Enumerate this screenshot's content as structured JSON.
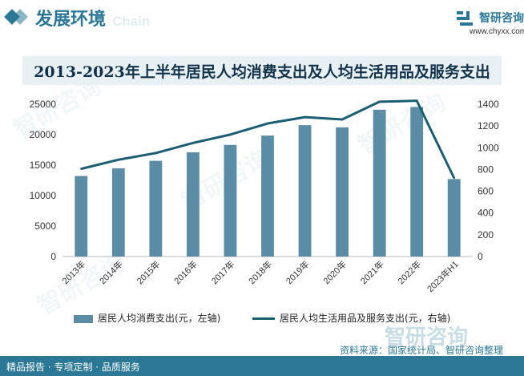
{
  "header": {
    "section_title": "发展环境",
    "ghost_text": "Chain",
    "brand_name": "智研咨询",
    "brand_url": "www.chyxx.com",
    "watermark": "智研咨询",
    "accent_color": "#2a7896"
  },
  "chart_title": "2013-2023年上半年居民人均消费支出及人均生活用品及服务支出",
  "legend": {
    "bar_label": "居民人均消费支出(元，左轴)",
    "line_label": "居民人均生活用品及服务支出(元，右轴)"
  },
  "source": "资料来源：国家统计局、智研咨询整理",
  "footer": {
    "left": "精品报告 · 专项定制 · 品质服务"
  },
  "chart_data": {
    "type": "bar",
    "categories": [
      "2013年",
      "2014年",
      "2015年",
      "2016年",
      "2017年",
      "2018年",
      "2019年",
      "2020年",
      "2021年",
      "2022年",
      "2023年H1"
    ],
    "series": [
      {
        "name": "居民人均消费支出(元，左轴)",
        "type": "bar",
        "axis": "left",
        "color": "#5b8ca5",
        "values": [
          13220,
          14491,
          15712,
          17111,
          18322,
          19853,
          21559,
          21210,
          24100,
          24538,
          12714
        ]
      },
      {
        "name": "居民人均生活用品及服务支出(元，右轴)",
        "type": "line",
        "axis": "right",
        "color": "#1b5e73",
        "values": [
          806,
          890,
          951,
          1044,
          1121,
          1223,
          1281,
          1260,
          1423,
          1432,
          722
        ]
      }
    ],
    "y_left": {
      "ticks": [
        0,
        5000,
        10000,
        15000,
        20000,
        25000
      ],
      "ylim": [
        0,
        25000
      ]
    },
    "y_right": {
      "ticks": [
        0,
        200,
        400,
        600,
        800,
        1000,
        1200,
        1400
      ],
      "ylim": [
        0,
        1400
      ]
    },
    "grid": false,
    "legend_position": "bottom"
  }
}
